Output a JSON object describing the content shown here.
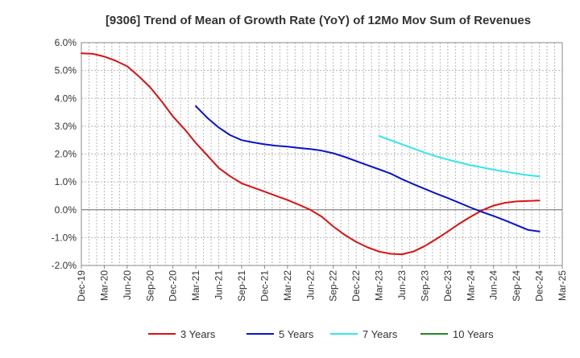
{
  "chart_data": {
    "type": "line",
    "title": "[9306]  Trend of Mean of Growth Rate (YoY) of 12Mo Mov Sum of Revenues",
    "xlabel": "",
    "ylabel": "",
    "x_ticks": [
      "Dec-19",
      "Mar-20",
      "Jun-20",
      "Sep-20",
      "Dec-20",
      "Mar-21",
      "Jun-21",
      "Sep-21",
      "Dec-21",
      "Mar-22",
      "Jun-22",
      "Sep-22",
      "Dec-22",
      "Mar-23",
      "Jun-23",
      "Sep-23",
      "Dec-23",
      "Mar-24",
      "Jun-24",
      "Sep-24",
      "Dec-24",
      "Mar-25"
    ],
    "y_ticks": [
      6.0,
      5.0,
      4.0,
      3.0,
      2.0,
      1.0,
      0.0,
      -1.0,
      -2.0
    ],
    "y_tick_labels": [
      "6.0%",
      "5.0%",
      "4.0%",
      "3.0%",
      "2.0%",
      "1.0%",
      "0.0%",
      "-1.0%",
      "-2.0%"
    ],
    "ylim": [
      -2.0,
      6.0
    ],
    "x_range_quarters": [
      0,
      21
    ],
    "grid": true,
    "legend_position": "bottom",
    "series": [
      {
        "name": "3 Years",
        "color": "#dd1111",
        "points": [
          [
            0,
            5.62
          ],
          [
            0.5,
            5.6
          ],
          [
            1,
            5.5
          ],
          [
            1.5,
            5.35
          ],
          [
            2,
            5.15
          ],
          [
            2.5,
            4.8
          ],
          [
            3,
            4.4
          ],
          [
            3.5,
            3.9
          ],
          [
            4,
            3.35
          ],
          [
            4.5,
            2.9
          ],
          [
            5,
            2.4
          ],
          [
            5.5,
            1.95
          ],
          [
            6,
            1.5
          ],
          [
            6.5,
            1.2
          ],
          [
            7,
            0.95
          ],
          [
            7.5,
            0.8
          ],
          [
            8,
            0.65
          ],
          [
            8.5,
            0.5
          ],
          [
            9,
            0.35
          ],
          [
            9.5,
            0.18
          ],
          [
            10,
            0.0
          ],
          [
            10.5,
            -0.25
          ],
          [
            11,
            -0.6
          ],
          [
            11.5,
            -0.9
          ],
          [
            12,
            -1.15
          ],
          [
            12.5,
            -1.35
          ],
          [
            13,
            -1.5
          ],
          [
            13.5,
            -1.58
          ],
          [
            14,
            -1.6
          ],
          [
            14.5,
            -1.5
          ],
          [
            15,
            -1.3
          ],
          [
            15.5,
            -1.05
          ],
          [
            16,
            -0.78
          ],
          [
            16.5,
            -0.5
          ],
          [
            17,
            -0.25
          ],
          [
            17.5,
            -0.02
          ],
          [
            18,
            0.15
          ],
          [
            18.5,
            0.25
          ],
          [
            19,
            0.3
          ],
          [
            19.5,
            0.32
          ],
          [
            20,
            0.33
          ]
        ]
      },
      {
        "name": "5 Years",
        "color": "#0a14c8",
        "points": [
          [
            5,
            3.72
          ],
          [
            5.5,
            3.3
          ],
          [
            6,
            2.95
          ],
          [
            6.5,
            2.68
          ],
          [
            7,
            2.5
          ],
          [
            7.5,
            2.42
          ],
          [
            8,
            2.35
          ],
          [
            8.5,
            2.3
          ],
          [
            9,
            2.27
          ],
          [
            9.5,
            2.22
          ],
          [
            10,
            2.18
          ],
          [
            10.5,
            2.12
          ],
          [
            11,
            2.03
          ],
          [
            11.5,
            1.9
          ],
          [
            12,
            1.75
          ],
          [
            12.5,
            1.6
          ],
          [
            13,
            1.45
          ],
          [
            13.5,
            1.3
          ],
          [
            14,
            1.1
          ],
          [
            14.5,
            0.92
          ],
          [
            15,
            0.75
          ],
          [
            15.5,
            0.58
          ],
          [
            16,
            0.42
          ],
          [
            16.5,
            0.25
          ],
          [
            17,
            0.08
          ],
          [
            17.5,
            -0.08
          ],
          [
            18,
            -0.22
          ],
          [
            18.5,
            -0.38
          ],
          [
            19,
            -0.55
          ],
          [
            19.5,
            -0.72
          ],
          [
            20,
            -0.78
          ]
        ]
      },
      {
        "name": "7 Years",
        "color": "#33e6ee",
        "points": [
          [
            13,
            2.65
          ],
          [
            13.5,
            2.5
          ],
          [
            14,
            2.35
          ],
          [
            14.5,
            2.2
          ],
          [
            15,
            2.05
          ],
          [
            15.5,
            1.92
          ],
          [
            16,
            1.8
          ],
          [
            16.5,
            1.7
          ],
          [
            17,
            1.6
          ],
          [
            17.5,
            1.52
          ],
          [
            18,
            1.44
          ],
          [
            18.5,
            1.37
          ],
          [
            19,
            1.3
          ],
          [
            19.5,
            1.24
          ],
          [
            20,
            1.2
          ]
        ]
      },
      {
        "name": "10 Years",
        "color": "#228822",
        "points": []
      }
    ]
  }
}
